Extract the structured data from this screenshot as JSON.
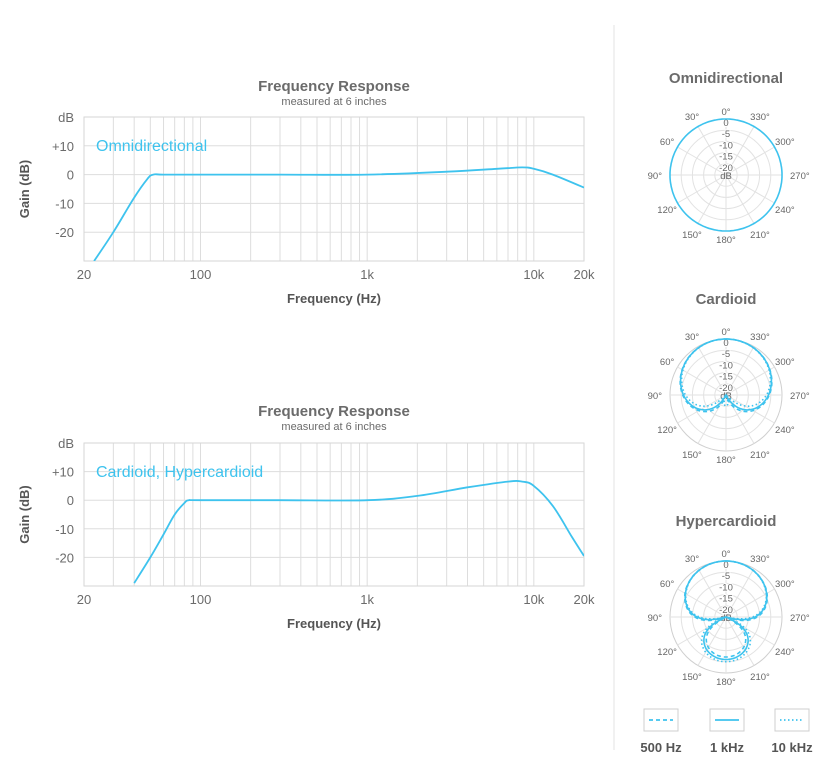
{
  "colors": {
    "accent": "#3ec3ee",
    "grid": "#dddddd",
    "text": "#6b6b6b"
  },
  "chart_data": [
    {
      "type": "line",
      "title": "Frequency Response",
      "subtitle": "measured at 6 inches",
      "inside_label": "Omnidirectional",
      "xlabel": "Frequency (Hz)",
      "ylabel": "Gain (dB)",
      "yunit": "dB",
      "xscale": "log",
      "xlim": [
        20,
        20000
      ],
      "ylim": [
        -30,
        20
      ],
      "xticks": [
        {
          "v": 20,
          "label": "20"
        },
        {
          "v": 100,
          "label": "100"
        },
        {
          "v": 1000,
          "label": "1k"
        },
        {
          "v": 10000,
          "label": "10k"
        },
        {
          "v": 20000,
          "label": "20k"
        }
      ],
      "yticks": [
        {
          "v": 10,
          "label": "+10"
        },
        {
          "v": 0,
          "label": "0"
        },
        {
          "v": -10,
          "label": "-10"
        },
        {
          "v": -20,
          "label": "-20"
        }
      ],
      "grid": true,
      "series": [
        {
          "x": [
            23,
            30,
            40,
            48,
            52,
            60,
            100,
            300,
            1000,
            3000,
            6000,
            8500,
            10000,
            13000,
            20000
          ],
          "y": [
            -30,
            -20,
            -8,
            -1.5,
            0,
            0,
            0,
            0,
            0,
            1,
            2,
            2.5,
            2,
            0,
            -4.5
          ]
        }
      ]
    },
    {
      "type": "line",
      "title": "Frequency Response",
      "subtitle": "measured at 6 inches",
      "inside_label": "Cardioid, Hypercardioid",
      "xlabel": "Frequency (Hz)",
      "ylabel": "Gain (dB)",
      "yunit": "dB",
      "xscale": "log",
      "xlim": [
        20,
        20000
      ],
      "ylim": [
        -30,
        20
      ],
      "xticks": [
        {
          "v": 20,
          "label": "20"
        },
        {
          "v": 100,
          "label": "100"
        },
        {
          "v": 1000,
          "label": "1k"
        },
        {
          "v": 10000,
          "label": "10k"
        },
        {
          "v": 20000,
          "label": "20k"
        }
      ],
      "yticks": [
        {
          "v": 10,
          "label": "+10"
        },
        {
          "v": 0,
          "label": "0"
        },
        {
          "v": -10,
          "label": "-10"
        },
        {
          "v": -20,
          "label": "-20"
        }
      ],
      "grid": true,
      "series": [
        {
          "x": [
            40,
            50,
            60,
            70,
            80,
            85,
            100,
            300,
            1000,
            2000,
            4000,
            7000,
            8500,
            10000,
            13000,
            17000,
            20000
          ],
          "y": [
            -29,
            -20,
            -12,
            -5,
            -1,
            0,
            0,
            0,
            0,
            1.5,
            4.5,
            6.5,
            6.5,
            5,
            -2,
            -13,
            -19.5
          ]
        }
      ]
    },
    {
      "type": "polar",
      "title": "Omnidirectional",
      "rlabels": [
        "0",
        "-5",
        "-10",
        "-15",
        "-20"
      ],
      "center_label": "dB",
      "angle_labels": [
        "0°",
        "30°",
        "60°",
        "90°",
        "120°",
        "150°",
        "180°",
        "210°",
        "240°",
        "270°",
        "300°",
        "330°"
      ],
      "series": [
        {
          "name": "1 kHz",
          "style": "solid",
          "pattern": "omni"
        }
      ]
    },
    {
      "type": "polar",
      "title": "Cardioid",
      "rlabels": [
        "0",
        "-5",
        "-10",
        "-15",
        "-20"
      ],
      "center_label": "dB",
      "angle_labels": [
        "0°",
        "30°",
        "60°",
        "90°",
        "120°",
        "150°",
        "180°",
        "210°",
        "240°",
        "270°",
        "300°",
        "330°"
      ],
      "series": [
        {
          "name": "500 Hz",
          "style": "dashed",
          "pattern": "cardioid"
        },
        {
          "name": "1 kHz",
          "style": "solid",
          "pattern": "cardioid"
        },
        {
          "name": "10 kHz",
          "style": "dotted",
          "pattern": "cardioid"
        }
      ]
    },
    {
      "type": "polar",
      "title": "Hypercardioid",
      "rlabels": [
        "0",
        "-5",
        "-10",
        "-15",
        "-20"
      ],
      "center_label": "dB",
      "angle_labels": [
        "0°",
        "30°",
        "60°",
        "90°",
        "120°",
        "150°",
        "180°",
        "210°",
        "240°",
        "270°",
        "300°",
        "330°"
      ],
      "series": [
        {
          "name": "500 Hz",
          "style": "dashed",
          "pattern": "hypercardioid"
        },
        {
          "name": "1 kHz",
          "style": "solid",
          "pattern": "hypercardioid"
        },
        {
          "name": "10 kHz",
          "style": "dotted",
          "pattern": "hypercardioid"
        }
      ]
    }
  ],
  "legend": [
    {
      "label": "500 Hz",
      "style": "dashed"
    },
    {
      "label": "1 kHz",
      "style": "solid"
    },
    {
      "label": "10 kHz",
      "style": "dotted"
    }
  ]
}
